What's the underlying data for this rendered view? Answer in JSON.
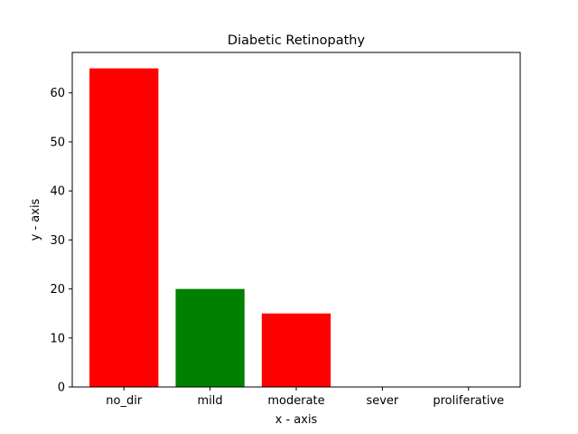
{
  "chart_data": {
    "type": "bar",
    "title": "Diabetic Retinopathy",
    "xlabel": "x - axis",
    "ylabel": "y - axis",
    "categories": [
      "no_dir",
      "mild",
      "moderate",
      "sever",
      "proliferative"
    ],
    "values": [
      65,
      20,
      15,
      0,
      0
    ],
    "bar_colors": [
      "#ff0000",
      "#008000",
      "#ff0000",
      "#008000",
      "#ff0000"
    ],
    "ylim": [
      0,
      68.25
    ],
    "yticks": [
      0,
      10,
      20,
      30,
      40,
      50,
      60
    ],
    "grid": false,
    "legend": "none"
  }
}
